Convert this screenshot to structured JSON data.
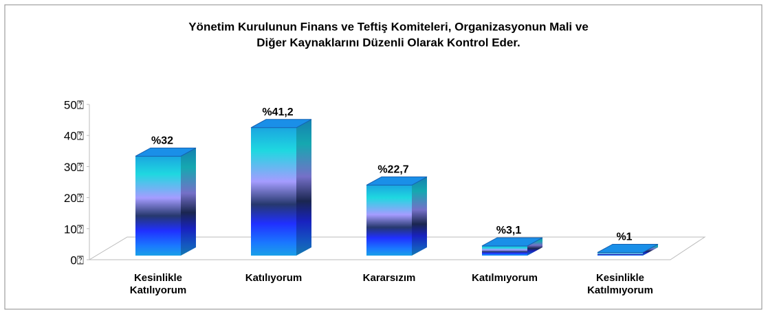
{
  "chart_data": {
    "type": "bar3d",
    "title": [
      "Yönetim Kurulunun Finans ve Teftiş Komiteleri, Organizasyonun Mali ve",
      "Diğer Kaynaklarını Düzenli Olarak Kontrol Eder."
    ],
    "categories": [
      "Kesinlikle Katılıyorum",
      "Katılıyorum",
      "Kararsızım",
      "Katılmıyorum",
      "Kesinlikle Katılmıyorum"
    ],
    "values": [
      32,
      41.2,
      22.7,
      3.1,
      1
    ],
    "value_labels": [
      "%32",
      "%41,2",
      "%22,7",
      "%3,1",
      "%1"
    ],
    "ylim": [
      0,
      50
    ],
    "yticks": [
      {
        "value": 0,
        "label": "0⍰"
      },
      {
        "value": 10,
        "label": "10⍰"
      },
      {
        "value": 20,
        "label": "20⍰"
      },
      {
        "value": 30,
        "label": "30⍰"
      },
      {
        "value": 40,
        "label": "40⍰"
      },
      {
        "value": 50,
        "label": "50⍰"
      }
    ],
    "color": "#1a8fe8"
  }
}
